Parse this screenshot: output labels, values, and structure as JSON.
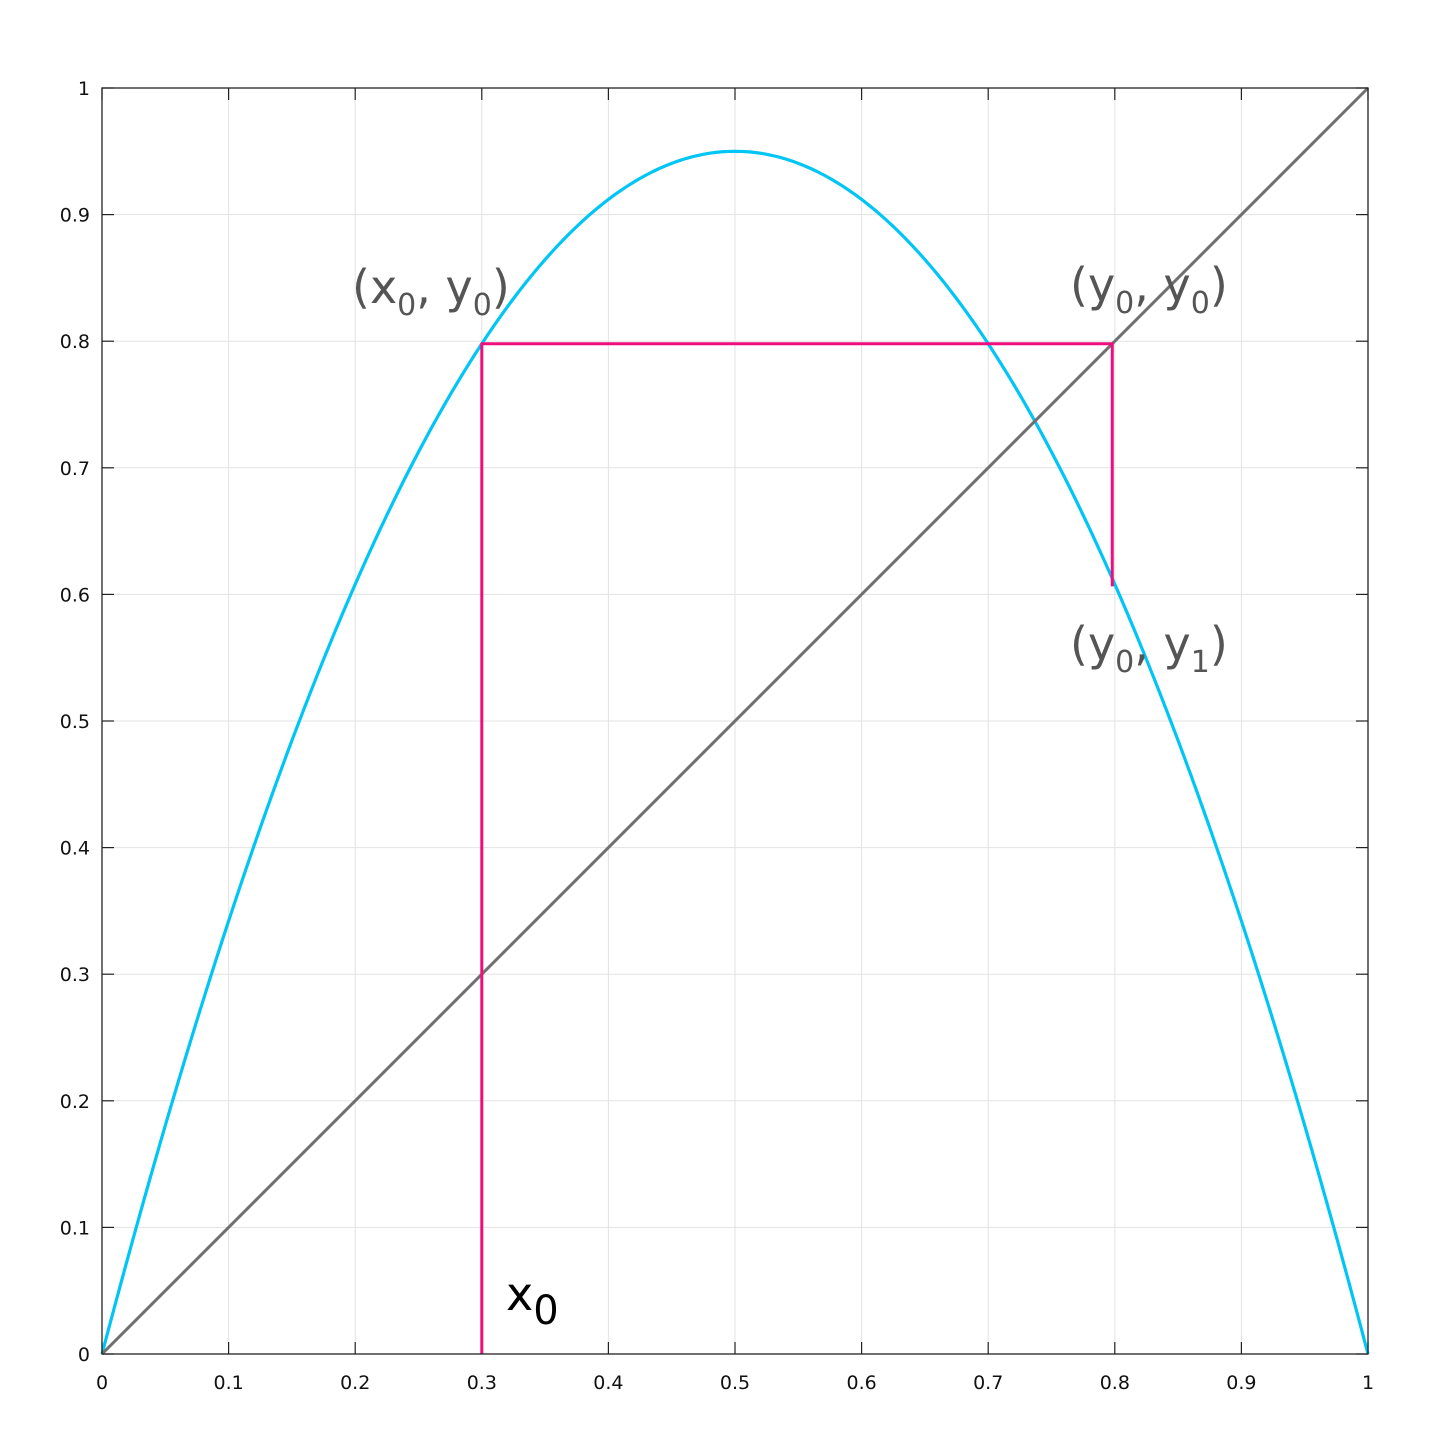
{
  "chart_data": {
    "type": "line",
    "title": "",
    "xlabel": "",
    "ylabel": "",
    "xlim": [
      0,
      1
    ],
    "ylim": [
      0,
      1
    ],
    "grid": true,
    "legend": "none",
    "x_ticks": [
      "0",
      "0.1",
      "0.2",
      "0.3",
      "0.4",
      "0.5",
      "0.6",
      "0.7",
      "0.8",
      "0.9",
      "1"
    ],
    "y_ticks": [
      "0",
      "0.1",
      "0.2",
      "0.3",
      "0.4",
      "0.5",
      "0.6",
      "0.7",
      "0.8",
      "0.9",
      "1"
    ],
    "series": [
      {
        "color": "#00c5f5",
        "x": [
          0,
          0.05,
          0.1,
          0.15,
          0.2,
          0.25,
          0.3,
          0.35,
          0.4,
          0.45,
          0.5,
          0.55,
          0.6,
          0.65,
          0.7,
          0.75,
          0.8,
          0.85,
          0.9,
          0.95,
          1
        ],
        "y": [
          0,
          0.1805,
          0.342,
          0.4845,
          0.608,
          0.7125,
          0.798,
          0.8645,
          0.912,
          0.9405,
          0.95,
          0.9405,
          0.912,
          0.8645,
          0.798,
          0.7125,
          0.608,
          0.4845,
          0.342,
          0.1805,
          0
        ]
      },
      {
        "color": "#707070",
        "x": [
          0,
          1
        ],
        "y": [
          0,
          1
        ]
      },
      {
        "color": "#ee0f7f",
        "x": [
          0.3,
          0.3,
          0.798,
          0.798
        ],
        "y": [
          0,
          0.798,
          0.798,
          0.6063
        ]
      }
    ],
    "annotations": [
      {
        "id": "p1",
        "text": "(x",
        "sub1": "0",
        "mid": ", y",
        "sub2": "0",
        "end": ")"
      },
      {
        "id": "p2",
        "text": "(y",
        "sub1": "0",
        "mid": ", y",
        "sub2": "0",
        "end": ")"
      },
      {
        "id": "p3",
        "text": "(y",
        "sub1": "0",
        "mid": ", y",
        "sub2": "1",
        "end": ")"
      },
      {
        "id": "x0",
        "text": "x",
        "sub1": "0"
      }
    ]
  }
}
